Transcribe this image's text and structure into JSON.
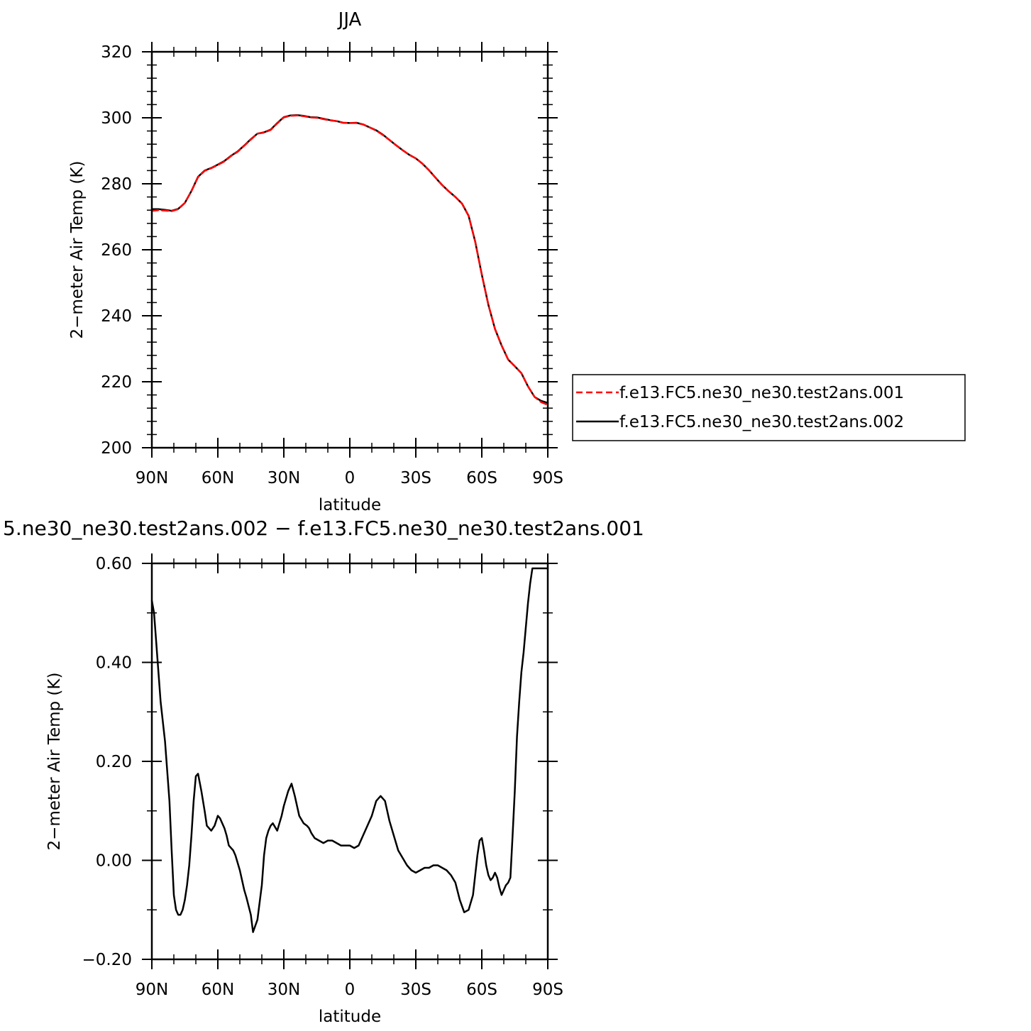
{
  "chart_data": [
    {
      "type": "line",
      "title": "JJA",
      "xlabel": "latitude",
      "ylabel": "2−meter Air Temp (K)",
      "xlim": [
        90,
        -90
      ],
      "ylim": [
        200,
        320
      ],
      "x_ticks": [
        90,
        60,
        30,
        0,
        -30,
        -60,
        -90
      ],
      "x_tick_labels": [
        "90N",
        "60N",
        "30N",
        "0",
        "30S",
        "60S",
        "90S"
      ],
      "y_ticks": [
        200,
        220,
        240,
        260,
        280,
        300,
        320
      ],
      "y_tick_labels": [
        "200",
        "220",
        "240",
        "260",
        "280",
        "300",
        "320"
      ],
      "grid": false,
      "legend": "right",
      "series": [
        {
          "name": "f.e13.FC5.ne30_ne30.test2ans.001",
          "color": "#ff0000",
          "dash": "dashed",
          "x": [
            90,
            87,
            84,
            81,
            78,
            75,
            72,
            69,
            66,
            63,
            60,
            57,
            54,
            51,
            48,
            45,
            42,
            39,
            36,
            33,
            30,
            27,
            24,
            21,
            18,
            15,
            12,
            9,
            6,
            3,
            0,
            -3,
            -6,
            -9,
            -12,
            -15,
            -18,
            -21,
            -24,
            -27,
            -30,
            -33,
            -36,
            -39,
            -42,
            -45,
            -48,
            -51,
            -54,
            -57,
            -60,
            -63,
            -66,
            -69,
            -72,
            -75,
            -78,
            -81,
            -84,
            -87,
            -90
          ],
          "y": [
            271.8,
            272.0,
            271.9,
            271.7,
            272.3,
            274.2,
            277.8,
            282.0,
            283.9,
            284.7,
            285.7,
            286.8,
            288.4,
            289.7,
            291.5,
            293.4,
            295.2,
            295.5,
            296.3,
            298.3,
            300.1,
            300.6,
            300.7,
            300.5,
            300.1,
            300.0,
            299.6,
            299.2,
            299.0,
            298.5,
            298.4,
            298.4,
            298.0,
            297.1,
            296.1,
            294.8,
            293.3,
            291.7,
            290.2,
            288.8,
            287.7,
            286.1,
            284.1,
            281.8,
            279.6,
            277.7,
            276.0,
            274.0,
            270.3,
            262.5,
            252.5,
            243.3,
            236.0,
            231.0,
            226.7,
            224.7,
            222.6,
            218.6,
            215.4,
            213.8,
            213.0
          ]
        },
        {
          "name": "f.e13.FC5.ne30_ne30.test2ans.002",
          "color": "#000000",
          "dash": "solid",
          "x": [
            90,
            87,
            84,
            81,
            78,
            75,
            72,
            69,
            66,
            63,
            60,
            57,
            54,
            51,
            48,
            45,
            42,
            39,
            36,
            33,
            30,
            27,
            24,
            21,
            18,
            15,
            12,
            9,
            6,
            3,
            0,
            -3,
            -6,
            -9,
            -12,
            -15,
            -18,
            -21,
            -24,
            -27,
            -30,
            -33,
            -36,
            -39,
            -42,
            -45,
            -48,
            -51,
            -54,
            -57,
            -60,
            -63,
            -66,
            -69,
            -72,
            -75,
            -78,
            -81,
            -84,
            -87,
            -90
          ],
          "y": [
            272.3,
            272.3,
            272.1,
            271.8,
            272.4,
            274.2,
            277.8,
            282.1,
            284.0,
            284.8,
            285.8,
            286.9,
            288.5,
            289.8,
            291.6,
            293.5,
            295.2,
            295.6,
            296.4,
            298.4,
            300.2,
            300.7,
            300.8,
            300.6,
            300.2,
            300.1,
            299.7,
            299.3,
            299.0,
            298.5,
            298.4,
            298.5,
            298.0,
            297.1,
            296.2,
            294.9,
            293.3,
            291.7,
            290.2,
            288.8,
            287.7,
            286.1,
            284.1,
            281.8,
            279.6,
            277.7,
            276.0,
            274.0,
            270.3,
            262.5,
            252.5,
            243.3,
            236.0,
            231.0,
            226.7,
            224.7,
            222.6,
            218.6,
            215.4,
            214.2,
            213.6
          ]
        }
      ]
    },
    {
      "type": "line",
      "title": "5.ne30_ne30.test2ans.002 − f.e13.FC5.ne30_ne30.test2ans.001",
      "xlabel": "latitude",
      "ylabel": "2−meter Air Temp (K)",
      "xlim": [
        90,
        -90
      ],
      "ylim": [
        -0.2,
        0.6
      ],
      "x_ticks": [
        90,
        60,
        30,
        0,
        -30,
        -60,
        -90
      ],
      "x_tick_labels": [
        "90N",
        "60N",
        "30N",
        "0",
        "30S",
        "60S",
        "90S"
      ],
      "y_ticks": [
        -0.2,
        0.0,
        0.2,
        0.4,
        0.6
      ],
      "y_tick_labels": [
        "−0.20",
        "0.00",
        "0.20",
        "0.40",
        "0.60"
      ],
      "grid": false,
      "series": [
        {
          "color": "#000000",
          "dash": "solid",
          "x": [
            90,
            89,
            88,
            86,
            84,
            82,
            81,
            80,
            79,
            78,
            77,
            76,
            75,
            74,
            73,
            72,
            71,
            70,
            69,
            67.5,
            66,
            65,
            63,
            61.5,
            60,
            59,
            58,
            57,
            56,
            55,
            53,
            52,
            50,
            48,
            47,
            45,
            44,
            42,
            40,
            39,
            38,
            37,
            36,
            35,
            33,
            31,
            30,
            28,
            26.5,
            25,
            23,
            21,
            19.5,
            18.5,
            17.5,
            16,
            14,
            12,
            10,
            8,
            6,
            4,
            2,
            0,
            -2,
            -4,
            -6,
            -8,
            -10,
            -12,
            -14,
            -16,
            -18,
            -20,
            -22,
            -24,
            -26,
            -28,
            -30,
            -32,
            -34,
            -36,
            -38,
            -40,
            -42,
            -44,
            -46,
            -48,
            -50,
            -52,
            -54,
            -56,
            -57,
            -58,
            -59,
            -60,
            -61,
            -62,
            -63,
            -64,
            -65,
            -66,
            -67,
            -68,
            -69,
            -70,
            -71,
            -72,
            -73,
            -74,
            -75,
            -76,
            -77,
            -78,
            -79,
            -80,
            -81,
            -82,
            -83,
            -84,
            -85,
            -86,
            -87,
            -88,
            -89,
            -90
          ],
          "y": [
            0.525,
            0.5,
            0.44,
            0.32,
            0.24,
            0.12,
            0.02,
            -0.07,
            -0.1,
            -0.11,
            -0.11,
            -0.1,
            -0.08,
            -0.05,
            -0.01,
            0.05,
            0.12,
            0.17,
            0.175,
            0.14,
            0.1,
            0.07,
            0.06,
            0.07,
            0.09,
            0.085,
            0.075,
            0.065,
            0.05,
            0.03,
            0.02,
            0.01,
            -0.02,
            -0.06,
            -0.075,
            -0.11,
            -0.145,
            -0.12,
            -0.05,
            0.01,
            0.045,
            0.06,
            0.07,
            0.075,
            0.06,
            0.09,
            0.11,
            0.14,
            0.155,
            0.13,
            0.09,
            0.075,
            0.07,
            0.065,
            0.055,
            0.045,
            0.04,
            0.035,
            0.04,
            0.04,
            0.035,
            0.03,
            0.03,
            0.03,
            0.025,
            0.03,
            0.05,
            0.07,
            0.09,
            0.12,
            0.13,
            0.12,
            0.08,
            0.05,
            0.02,
            0.005,
            -0.01,
            -0.02,
            -0.025,
            -0.02,
            -0.015,
            -0.015,
            -0.01,
            -0.01,
            -0.015,
            -0.02,
            -0.03,
            -0.045,
            -0.08,
            -0.105,
            -0.1,
            -0.07,
            -0.03,
            0.01,
            0.04,
            0.045,
            0.02,
            -0.01,
            -0.03,
            -0.04,
            -0.035,
            -0.025,
            -0.035,
            -0.055,
            -0.07,
            -0.06,
            -0.05,
            -0.045,
            -0.035,
            0.05,
            0.14,
            0.25,
            0.32,
            0.38,
            0.42,
            0.47,
            0.52,
            0.56,
            0.59,
            0.59,
            0.59,
            0.59,
            0.59,
            0.59,
            0.59,
            0.59
          ]
        }
      ]
    }
  ]
}
